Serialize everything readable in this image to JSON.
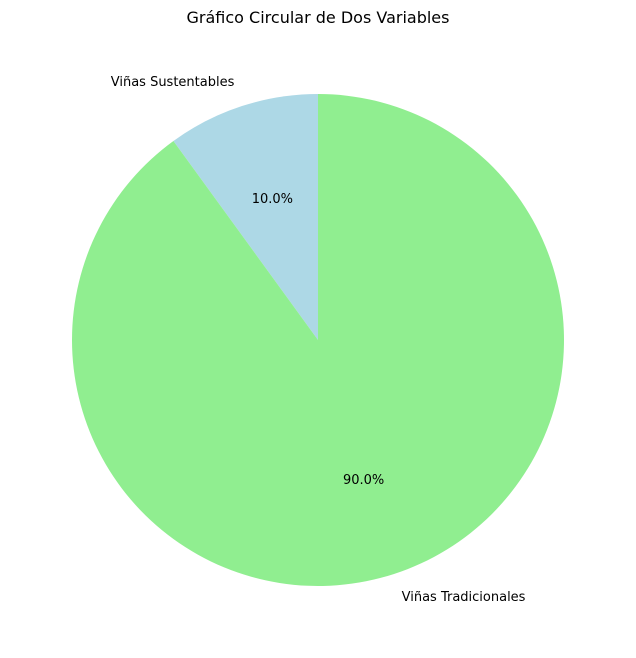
{
  "chart_data": {
    "type": "pie",
    "title": "Gráfico Circular de Dos Variables",
    "start_angle_deg": 90,
    "direction": "counterclockwise",
    "slices": [
      {
        "label": "Viñas Sustentables",
        "value": 10.0,
        "pct_label": "10.0%",
        "color": "#add8e6"
      },
      {
        "label": "Viñas Tradicionales",
        "value": 90.0,
        "pct_label": "90.0%",
        "color": "#90ee90"
      }
    ]
  }
}
